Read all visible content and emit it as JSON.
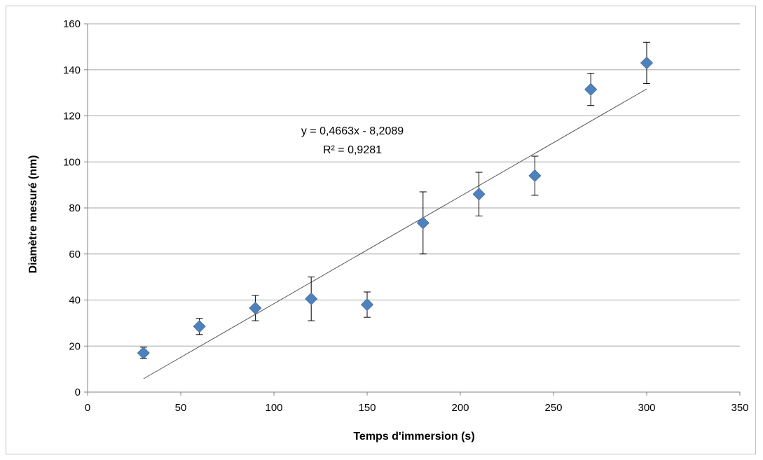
{
  "chart_data": {
    "type": "scatter",
    "title": "",
    "xlabel": "Temps d'immersion (s)",
    "ylabel": "Diamètre mesuré (nm)",
    "xlim": [
      0,
      350
    ],
    "ylim": [
      0,
      160
    ],
    "x_ticks": [
      "0",
      "50",
      "100",
      "150",
      "200",
      "250",
      "300",
      "350"
    ],
    "y_ticks": [
      "0",
      "20",
      "40",
      "60",
      "80",
      "100",
      "120",
      "140",
      "160"
    ],
    "grid": "horizontal",
    "legend": "none",
    "marker_color": "#4f81bd",
    "series": [
      {
        "x": [
          30,
          60,
          90,
          120,
          150,
          180,
          210,
          240,
          270,
          300
        ],
        "y": [
          17,
          28.5,
          36.5,
          40.5,
          38,
          73.5,
          86,
          94,
          131.5,
          143
        ],
        "error": [
          2.5,
          3.5,
          5.5,
          9.5,
          5.5,
          13.5,
          9.5,
          8.5,
          7,
          9
        ]
      }
    ],
    "trendline": {
      "type": "linear",
      "slope": 0.4663,
      "intercept": -8.2089,
      "x_range": [
        30,
        300
      ],
      "color": "#595959"
    },
    "annotations": {
      "equation": "y = 0,4663x - 8,2089",
      "r_squared": "R² = 0,9281"
    }
  }
}
